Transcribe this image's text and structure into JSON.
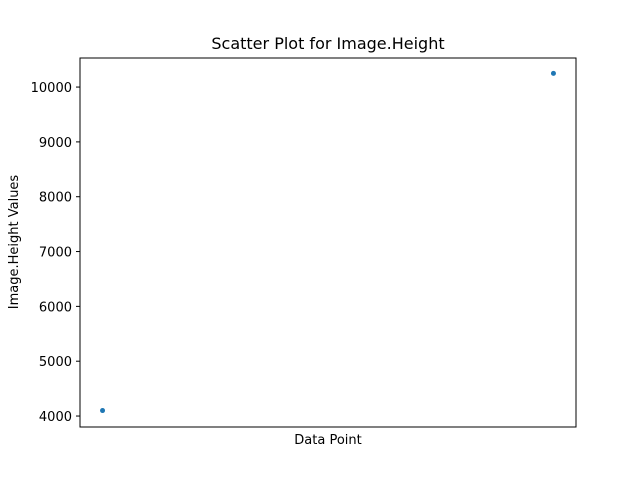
{
  "chart_data": {
    "type": "scatter",
    "title": "Scatter Plot for Image.Height",
    "xlabel": "Data Point",
    "ylabel": "Image.Height Values",
    "x": [
      0,
      1
    ],
    "y": [
      4100,
      10250
    ],
    "xlim": [
      -0.05,
      1.05
    ],
    "ylim": [
      3800,
      10530
    ],
    "yticks": [
      4000,
      5000,
      6000,
      7000,
      8000,
      9000,
      10000
    ],
    "x_ticks_visible": false,
    "grid": false,
    "point_color": "#1f77b4"
  }
}
